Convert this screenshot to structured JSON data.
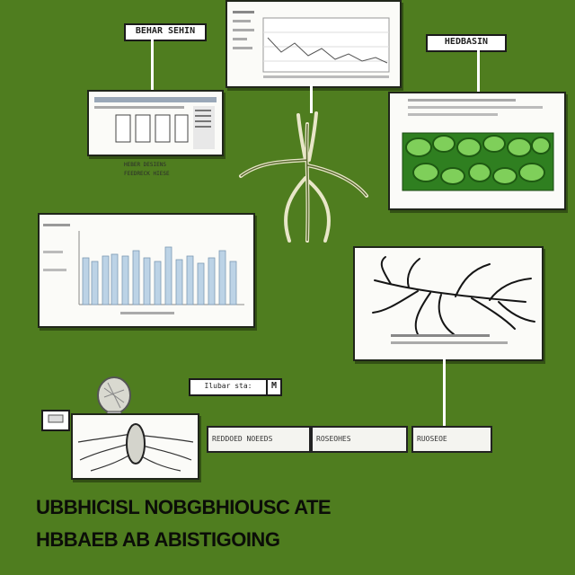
{
  "labels": {
    "top_left": "BEHAR SEHIN",
    "top_right": "HEDBASIN",
    "small_strip": "Ilubar sta:",
    "small_tag": "M"
  },
  "chips": [
    {
      "text": "REDDOED NOEEDS"
    },
    {
      "text": "ROSEOHES"
    },
    {
      "text": "RUOSEOE"
    }
  ],
  "captions": {
    "left": "HEBER DESIENS",
    "left2": "FEEDRECK HIESE"
  },
  "heading": {
    "line1": "UBBHICISL NOBGBHIOUSC ATE",
    "line2": "HBBAEB AB ABISTIGOING"
  },
  "colors": {
    "background": "#4f7d1f",
    "panel": "#fbfbf8",
    "leaf_green": "#3d9a2a"
  },
  "icons": [
    "plant-root-icon",
    "neuron-icon",
    "bulb-icon"
  ]
}
